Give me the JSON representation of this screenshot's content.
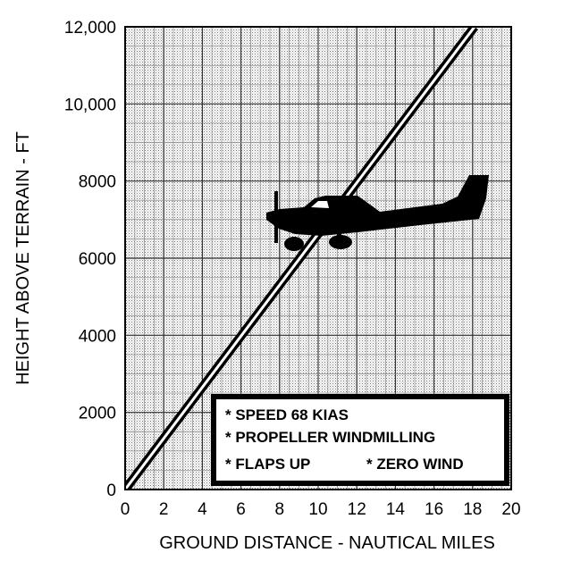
{
  "chart_data": {
    "type": "line",
    "title": "",
    "xlabel": "GROUND DISTANCE - NAUTICAL MILES",
    "ylabel": "HEIGHT ABOVE TERRAIN - FT",
    "xlim": [
      0,
      20
    ],
    "ylim": [
      0,
      12000
    ],
    "grid": true,
    "x_ticks": [
      "0",
      "2",
      "4",
      "6",
      "8",
      "10",
      "12",
      "14",
      "16",
      "18",
      "20"
    ],
    "y_ticks": [
      "0",
      "2000",
      "4000",
      "6000",
      "8000",
      "10,000",
      "12,000"
    ],
    "series": [
      {
        "x": [
          0,
          18.1
        ],
        "y": [
          0,
          12000
        ]
      }
    ],
    "notes": [
      "* SPEED 68 KIAS",
      "* PROPELLER WINDMILLING",
      "* FLAPS UP",
      "* ZERO WIND"
    ],
    "legend_position": "bottom-right",
    "illustration": "airplane-silhouette"
  }
}
